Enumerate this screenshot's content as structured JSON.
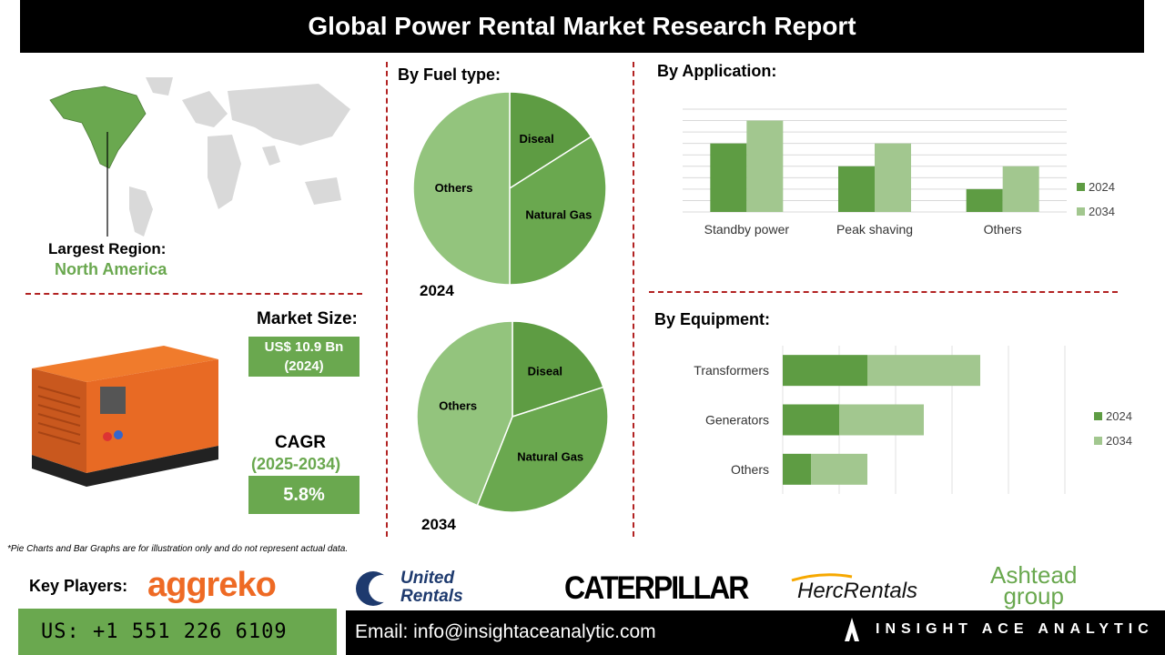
{
  "header": {
    "title": "Global Power Rental Market Research Report"
  },
  "region": {
    "label": "Largest Region:",
    "value": "North America"
  },
  "market_size": {
    "label": "Market Size:",
    "value_line1": "US$ 10.9 Bn",
    "value_line2": "(2024)"
  },
  "cagr": {
    "label": "CAGR",
    "period": "(2025-2034)",
    "value": "5.8%"
  },
  "fuel": {
    "title": "By Fuel type:",
    "year_2024": "2024",
    "year_2034": "2034"
  },
  "application": {
    "title": "By  Application:"
  },
  "equipment": {
    "title": "By Equipment:"
  },
  "footnote": "*Pie Charts and Bar Graphs are for illustration only and do not represent actual data.",
  "key_players": {
    "label": "Key Players:",
    "logos": [
      "aggreko",
      "United",
      "Rentals",
      "CATERPILLAR",
      "HercRentals",
      "Ashtead",
      "group"
    ]
  },
  "contact": {
    "phone": "US: +1 551 226 6109",
    "email": "Email: info@insightaceanalytic.com",
    "brand": "INSIGHT ACE ANALYTIC"
  },
  "colors": {
    "dark_green": "#5e9c43",
    "mid_green": "#6aa84f",
    "light_green": "#a2c78f",
    "title_black": "#000000",
    "divider_red": "#b22222"
  },
  "chart_data": [
    {
      "type": "pie",
      "title": "2024",
      "slices": [
        {
          "label": "Diseal",
          "value": 16,
          "color": "#5e9c43"
        },
        {
          "label": "Natural Gas",
          "value": 34,
          "color": "#6aa84f"
        },
        {
          "label": "Others",
          "value": 50,
          "color": "#93c47d"
        }
      ]
    },
    {
      "type": "pie",
      "title": "2034",
      "slices": [
        {
          "label": "Diseal",
          "value": 20,
          "color": "#5e9c43"
        },
        {
          "label": "Natural Gas",
          "value": 36,
          "color": "#6aa84f"
        },
        {
          "label": "Others",
          "value": 44,
          "color": "#93c47d"
        }
      ]
    },
    {
      "type": "bar",
      "categories": [
        "Standby power",
        "Peak shaving",
        "Others"
      ],
      "series": [
        {
          "name": "2024",
          "values": [
            3,
            2,
            1
          ],
          "color": "#5e9c43"
        },
        {
          "name": "2034",
          "values": [
            4,
            3,
            2
          ],
          "color": "#a2c78f"
        }
      ],
      "ylim": [
        0,
        4.5
      ],
      "grid": true,
      "legend": "right"
    },
    {
      "type": "bar",
      "orientation": "horizontal",
      "stacked": true,
      "categories": [
        "Transformers",
        "Generators",
        "Others"
      ],
      "series": [
        {
          "name": "2024",
          "values": [
            3,
            2,
            1
          ],
          "color": "#5e9c43"
        },
        {
          "name": "2034",
          "values": [
            4,
            3,
            2
          ],
          "color": "#a2c78f"
        }
      ],
      "xlim": [
        0,
        10
      ],
      "grid": true,
      "legend": "right"
    }
  ]
}
